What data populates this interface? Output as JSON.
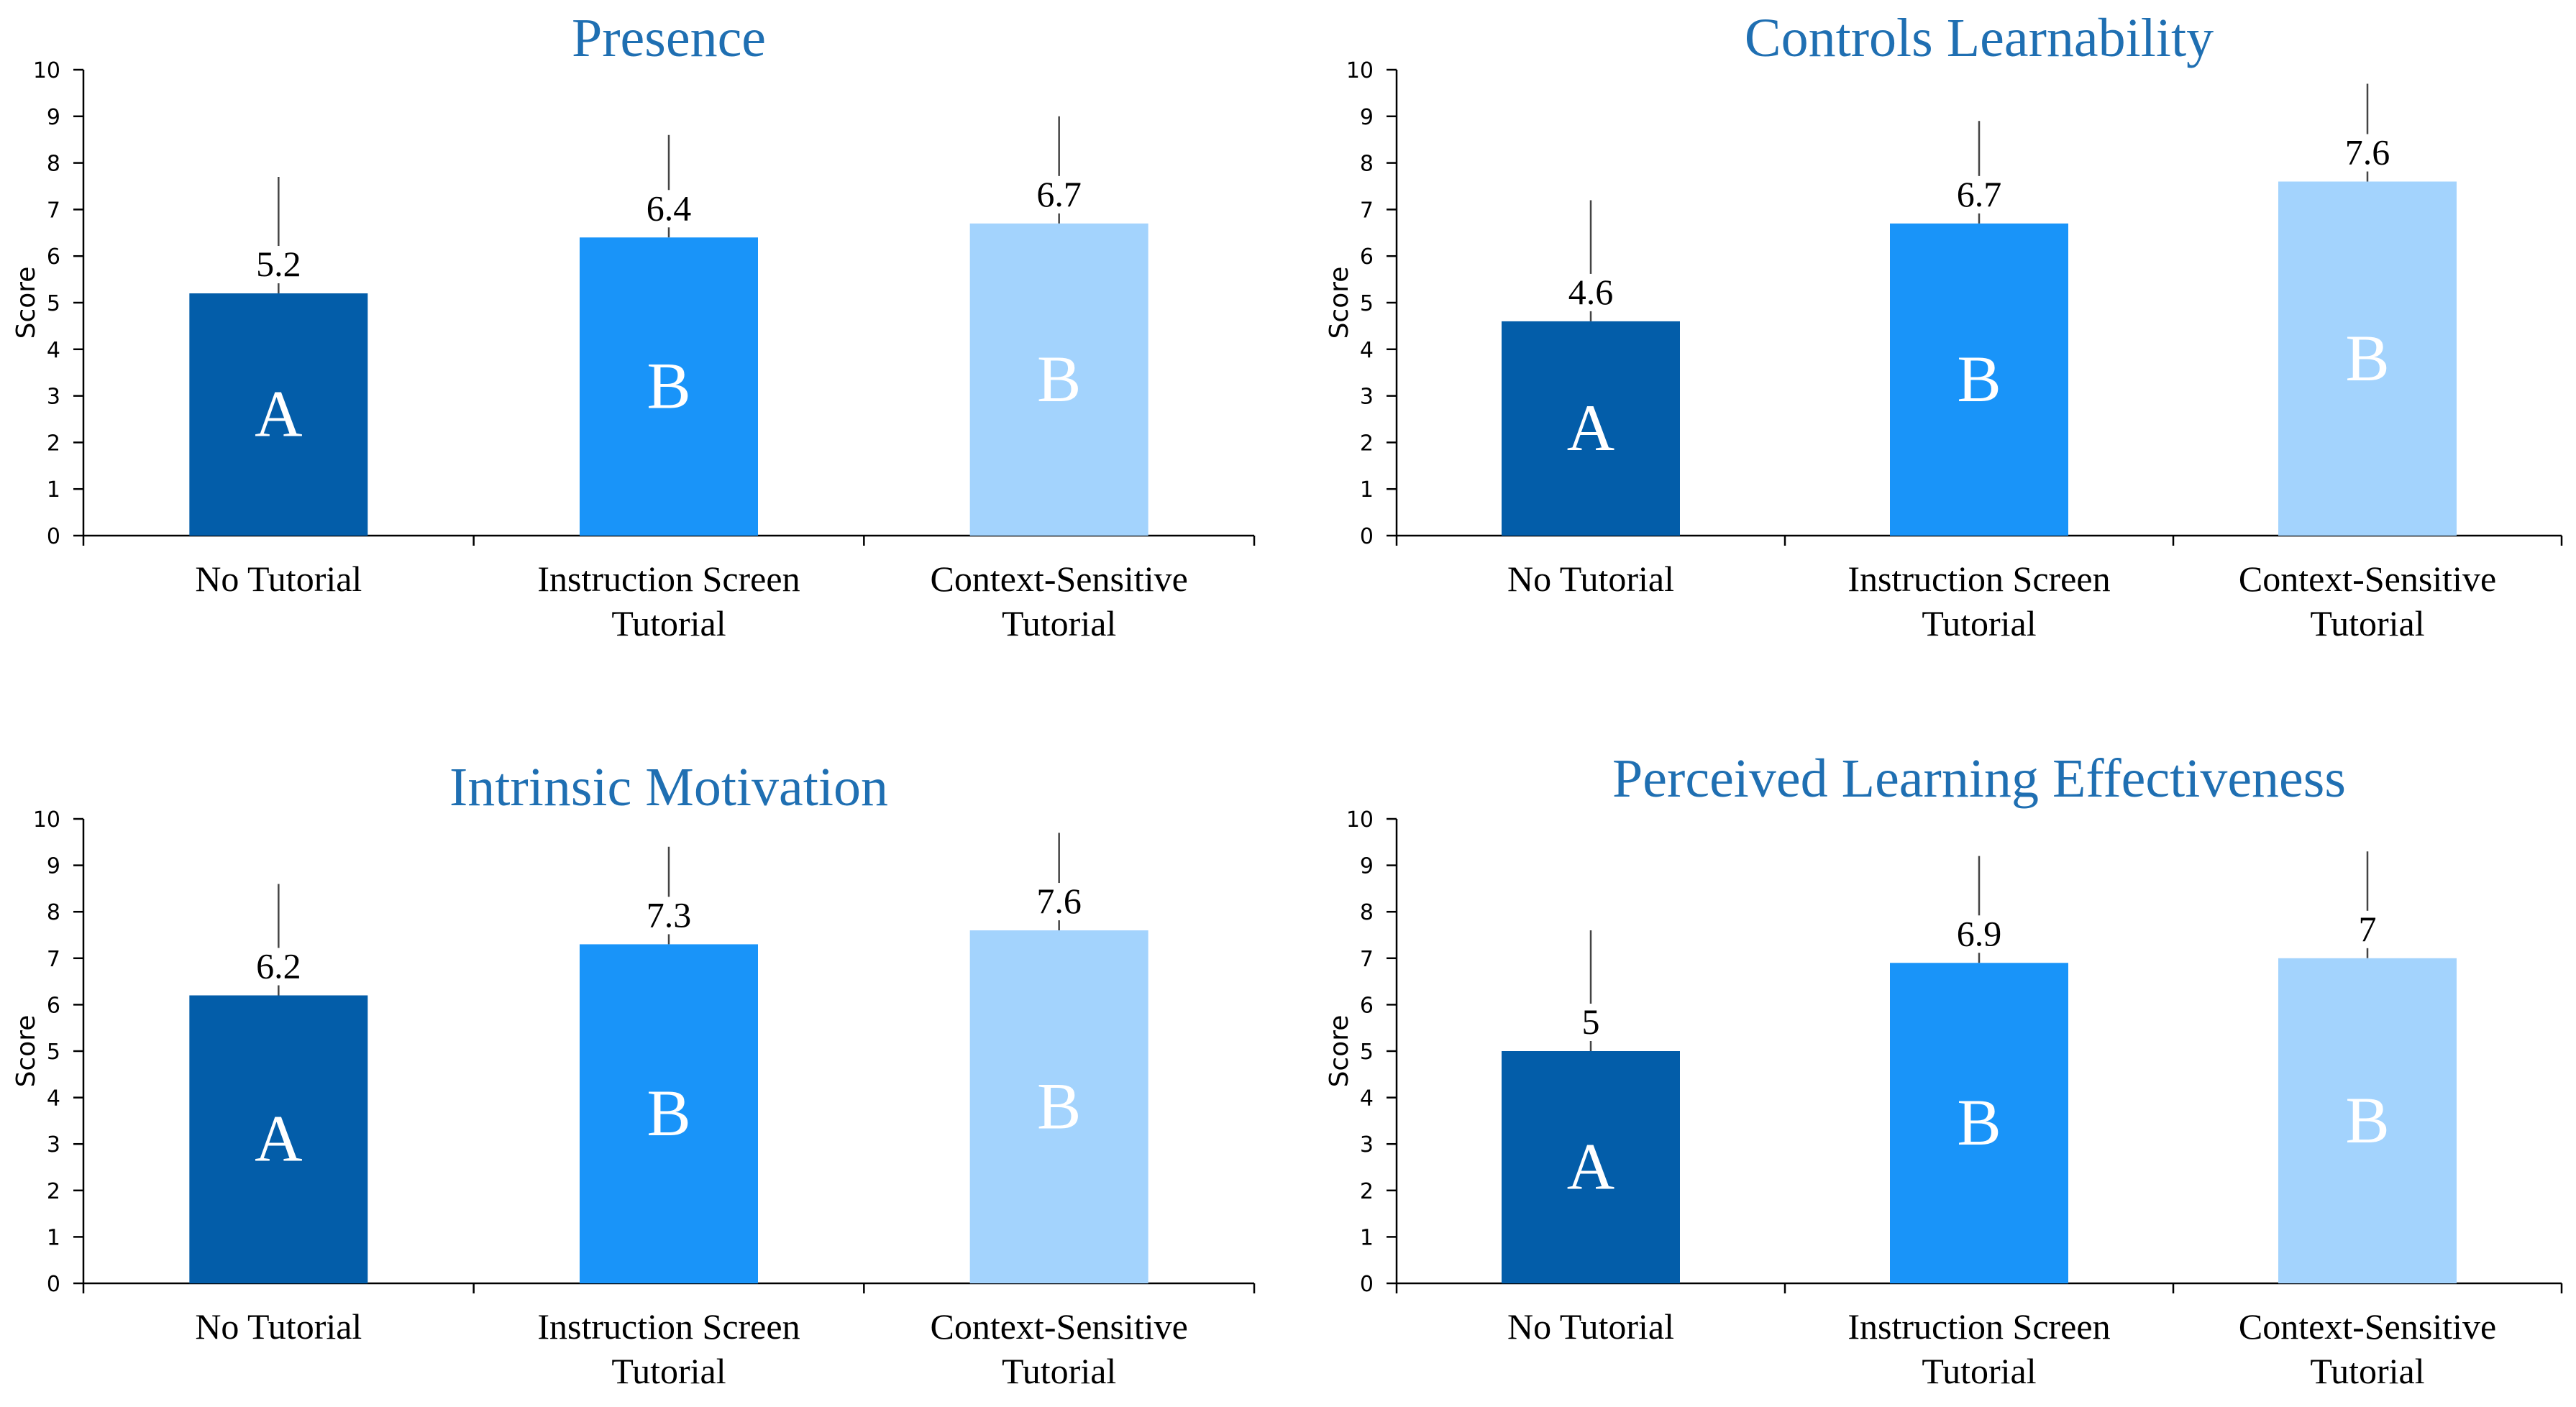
{
  "chart_data": [
    {
      "type": "bar",
      "title": "Presence",
      "ylabel": "Score",
      "xlabel": "",
      "ylim": [
        0,
        10
      ],
      "yticks": [
        "0",
        "1",
        "2",
        "3",
        "4",
        "5",
        "6",
        "7",
        "8",
        "9",
        "10"
      ],
      "categories": [
        [
          "No Tutorial"
        ],
        [
          "Instruction Screen",
          "Tutorial"
        ],
        [
          "Context-Sensitive",
          "Tutorial"
        ]
      ],
      "values": [
        5.2,
        6.4,
        6.7
      ],
      "value_labels": [
        "5.2",
        "6.4",
        "6.7"
      ],
      "errors": [
        2.5,
        2.2,
        2.3
      ],
      "groups": [
        "A",
        "B",
        "B"
      ],
      "colors": [
        "#035da9",
        "#1994f9",
        "#a3d3fd"
      ],
      "grid": false
    },
    {
      "type": "bar",
      "title": "Controls Learnability",
      "ylabel": "Score",
      "xlabel": "",
      "ylim": [
        0,
        10
      ],
      "yticks": [
        "0",
        "1",
        "2",
        "3",
        "4",
        "5",
        "6",
        "7",
        "8",
        "9",
        "10"
      ],
      "categories": [
        [
          "No Tutorial"
        ],
        [
          "Instruction Screen",
          "Tutorial"
        ],
        [
          "Context-Sensitive",
          "Tutorial"
        ]
      ],
      "values": [
        4.6,
        6.7,
        7.6
      ],
      "value_labels": [
        "4.6",
        "6.7",
        "7.6"
      ],
      "errors": [
        2.6,
        2.2,
        2.1
      ],
      "groups": [
        "A",
        "B",
        "B"
      ],
      "colors": [
        "#035da9",
        "#1994f9",
        "#a3d3fd"
      ],
      "grid": false
    },
    {
      "type": "bar",
      "title": "Intrinsic Motivation",
      "ylabel": "Score",
      "xlabel": "",
      "ylim": [
        0,
        10
      ],
      "yticks": [
        "0",
        "1",
        "2",
        "3",
        "4",
        "5",
        "6",
        "7",
        "8",
        "9",
        "10"
      ],
      "categories": [
        [
          "No Tutorial"
        ],
        [
          "Instruction Screen",
          "Tutorial"
        ],
        [
          "Context-Sensitive",
          "Tutorial"
        ]
      ],
      "values": [
        6.2,
        7.3,
        7.6
      ],
      "value_labels": [
        "6.2",
        "7.3",
        "7.6"
      ],
      "errors": [
        2.4,
        2.1,
        2.1
      ],
      "groups": [
        "A",
        "B",
        "B"
      ],
      "colors": [
        "#035da9",
        "#1994f9",
        "#a3d3fd"
      ],
      "grid": false
    },
    {
      "type": "bar",
      "title": "Perceived Learning Effectiveness",
      "ylabel": "Score",
      "xlabel": "",
      "ylim": [
        0,
        10
      ],
      "yticks": [
        "0",
        "1",
        "2",
        "3",
        "4",
        "5",
        "6",
        "7",
        "8",
        "9",
        "10"
      ],
      "categories": [
        [
          "No Tutorial"
        ],
        [
          "Instruction Screen",
          "Tutorial"
        ],
        [
          "Context-Sensitive",
          "Tutorial"
        ]
      ],
      "values": [
        5,
        6.9,
        7
      ],
      "value_labels": [
        "5",
        "6.9",
        "7"
      ],
      "errors": [
        2.6,
        2.3,
        2.3
      ],
      "groups": [
        "A",
        "B",
        "B"
      ],
      "colors": [
        "#035da9",
        "#1994f9",
        "#a3d3fd"
      ],
      "grid": false
    }
  ]
}
